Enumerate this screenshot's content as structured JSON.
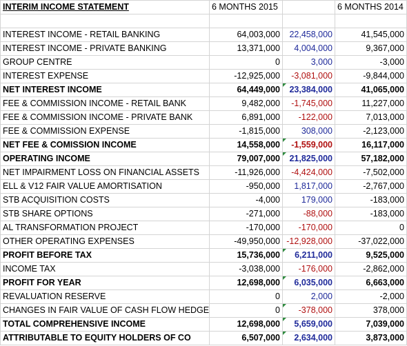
{
  "sheet": {
    "title": "INTERIM INCOME STATEMENT",
    "col_2015": "6 MONTHS 2015",
    "col_2014": "6 MONTHS 2014",
    "colors": {
      "positive": "#1f2a9a",
      "negative": "#b01010",
      "flag": "#2e8b3e"
    },
    "rows": [
      {
        "label": "INTEREST INCOME - RETAIL BANKING",
        "v2015": "64,003,000",
        "diff": "22,458,000",
        "v2014": "41,545,000",
        "bold": false,
        "flag": false
      },
      {
        "label": "INTEREST INCOME - PRIVATE BANKING",
        "v2015": "13,371,000",
        "diff": "4,004,000",
        "v2014": "9,367,000",
        "bold": false,
        "flag": false
      },
      {
        "label": "GROUP CENTRE",
        "v2015": "0",
        "diff": "3,000",
        "v2014": "-3,000",
        "bold": false,
        "flag": false
      },
      {
        "label": "INTEREST EXPENSE",
        "v2015": "-12,925,000",
        "diff": "-3,081,000",
        "v2014": "-9,844,000",
        "bold": false,
        "flag": false
      },
      {
        "label": "NET INTEREST INCOME",
        "v2015": "64,449,000",
        "diff": "23,384,000",
        "v2014": "41,065,000",
        "bold": true,
        "flag": true
      },
      {
        "label": "FEE & COMMISSION INCOME - RETAIL BANK",
        "v2015": "9,482,000",
        "diff": "-1,745,000",
        "v2014": "11,227,000",
        "bold": false,
        "flag": false
      },
      {
        "label": "FEE & COMMISSION INCOME - PRIVATE BANK",
        "v2015": "6,891,000",
        "diff": "-122,000",
        "v2014": "7,013,000",
        "bold": false,
        "flag": false
      },
      {
        "label": "FEE & COMMISSION EXPENSE",
        "v2015": "-1,815,000",
        "diff": "308,000",
        "v2014": "-2,123,000",
        "bold": false,
        "flag": false
      },
      {
        "label": "NET FEE & COMISSION INCOME",
        "v2015": "14,558,000",
        "diff": "-1,559,000",
        "v2014": "16,117,000",
        "bold": true,
        "flag": true
      },
      {
        "label": "OPERATING INCOME",
        "v2015": "79,007,000",
        "diff": "21,825,000",
        "v2014": "57,182,000",
        "bold": true,
        "flag": true
      },
      {
        "label": "NET IMPAIRMENT LOSS ON FINANCIAL ASSETS",
        "v2015": "-11,926,000",
        "diff": "-4,424,000",
        "v2014": "-7,502,000",
        "bold": false,
        "flag": false
      },
      {
        "label": "ELL & V12 FAIR VALUE AMORTISATION",
        "v2015": "-950,000",
        "diff": "1,817,000",
        "v2014": "-2,767,000",
        "bold": false,
        "flag": false
      },
      {
        "label": "STB ACQUISITION COSTS",
        "v2015": "-4,000",
        "diff": "179,000",
        "v2014": "-183,000",
        "bold": false,
        "flag": false
      },
      {
        "label": "STB SHARE OPTIONS",
        "v2015": "-271,000",
        "diff": "-88,000",
        "v2014": "-183,000",
        "bold": false,
        "flag": false
      },
      {
        "label": "AL TRANSFORMATION PROJECT",
        "v2015": "-170,000",
        "diff": "-170,000",
        "v2014": "0",
        "bold": false,
        "flag": false
      },
      {
        "label": "OTHER OPERATING EXPENSES",
        "v2015": "-49,950,000",
        "diff": "-12,928,000",
        "v2014": "-37,022,000",
        "bold": false,
        "flag": false
      },
      {
        "label": "PROFIT BEFORE TAX",
        "v2015": "15,736,000",
        "diff": "6,211,000",
        "v2014": "9,525,000",
        "bold": true,
        "flag": true
      },
      {
        "label": "INCOME TAX",
        "v2015": "-3,038,000",
        "diff": "-176,000",
        "v2014": "-2,862,000",
        "bold": false,
        "flag": false
      },
      {
        "label": "PROFIT FOR YEAR",
        "v2015": "12,698,000",
        "diff": "6,035,000",
        "v2014": "6,663,000",
        "bold": true,
        "flag": true
      },
      {
        "label": "REVALUATION RESERVE",
        "v2015": "0",
        "diff": "2,000",
        "v2014": "-2,000",
        "bold": false,
        "flag": false
      },
      {
        "label": "CHANGES IN FAIR VALUE OF CASH FLOW HEDGE",
        "v2015": "0",
        "diff": "-378,000",
        "v2014": "378,000",
        "bold": false,
        "flag": true
      },
      {
        "label": "TOTAL COMPREHENSIVE INCOME",
        "v2015": "12,698,000",
        "diff": "5,659,000",
        "v2014": "7,039,000",
        "bold": true,
        "flag": true
      },
      {
        "label": "ATTRIBUTABLE TO EQUITY HOLDERS OF CO",
        "v2015": "6,507,000",
        "diff": "2,634,000",
        "v2014": "3,873,000",
        "bold": true,
        "flag": true
      }
    ]
  }
}
